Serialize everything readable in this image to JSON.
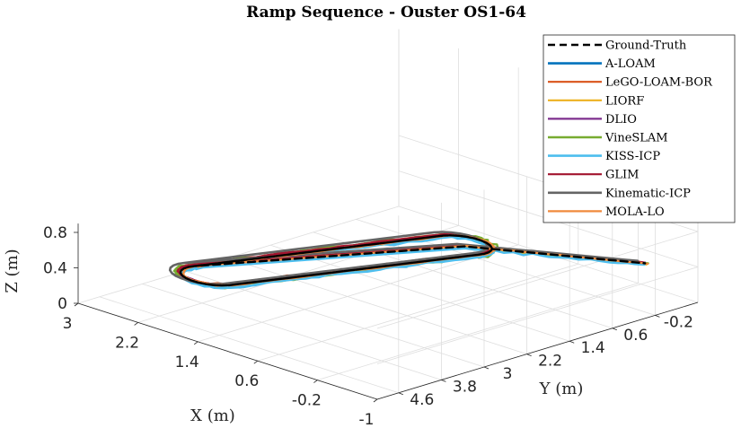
{
  "chart_data": {
    "type": "line",
    "projection": "3d",
    "title": "Ramp Sequence - Ouster OS1-64",
    "xlabel": "X (m)",
    "ylabel": "Y (m)",
    "zlabel": "Z (m)",
    "x_ticks": [
      "3",
      "2.2",
      "1.4",
      "0.6",
      "-0.2",
      "-1"
    ],
    "y_ticks": [
      "-0.2",
      "0.6",
      "1.4",
      "2.2",
      "3",
      "3.8",
      "4.6"
    ],
    "z_ticks": [
      "0",
      "0.4",
      "0.8"
    ],
    "xlim": [
      -1,
      3
    ],
    "ylim": [
      -1,
      5
    ],
    "zlim": [
      0,
      1
    ],
    "grid": true,
    "legend_position": "top-right",
    "series": [
      {
        "name": "Ground-Truth",
        "color": "#000000",
        "style": "dashed",
        "width": 2.4,
        "jitter": 0.0,
        "dx": 0.0,
        "dy": 0.0,
        "scale": 1.0
      },
      {
        "name": "A-LOAM",
        "color": "#0072BD",
        "style": "solid",
        "width": 2.6,
        "jitter": 0.02,
        "dx": 0.0,
        "dy": 0.0,
        "scale": 1.0
      },
      {
        "name": "LeGO-LOAM-BOR",
        "color": "#D95319",
        "style": "solid",
        "width": 2.2,
        "jitter": 0.03,
        "dx": 0.05,
        "dy": 0.0,
        "scale": 1.0
      },
      {
        "name": "LIORF",
        "color": "#EDB120",
        "style": "solid",
        "width": 2.2,
        "jitter": 0.02,
        "dx": -0.03,
        "dy": 0.03,
        "scale": 1.0
      },
      {
        "name": "DLIO",
        "color": "#7E2F8E",
        "style": "solid",
        "width": 2.2,
        "jitter": 0.02,
        "dx": 0.02,
        "dy": -0.03,
        "scale": 1.0
      },
      {
        "name": "VineSLAM",
        "color": "#77AC30",
        "style": "solid",
        "width": 2.4,
        "jitter": 0.07,
        "dx": 0.0,
        "dy": 0.0,
        "scale": 1.12
      },
      {
        "name": "KISS-ICP",
        "color": "#4DBEEE",
        "style": "solid",
        "width": 2.6,
        "jitter": 0.04,
        "dx": -0.05,
        "dy": 0.05,
        "scale": 1.0
      },
      {
        "name": "GLIM",
        "color": "#A2142F",
        "style": "solid",
        "width": 2.2,
        "jitter": 0.02,
        "dx": 0.04,
        "dy": -0.02,
        "scale": 1.0
      },
      {
        "name": "Kinematic-ICP",
        "color": "#646464",
        "style": "solid",
        "width": 2.6,
        "jitter": 0.0,
        "dx": 0.1,
        "dy": 0.0,
        "scale": 1.1
      },
      {
        "name": "MOLA-LO",
        "color": "#F08A3C",
        "style": "solid",
        "width": 2.2,
        "jitter": 0.02,
        "dx": -0.02,
        "dy": -0.02,
        "scale": 1.0
      }
    ]
  }
}
